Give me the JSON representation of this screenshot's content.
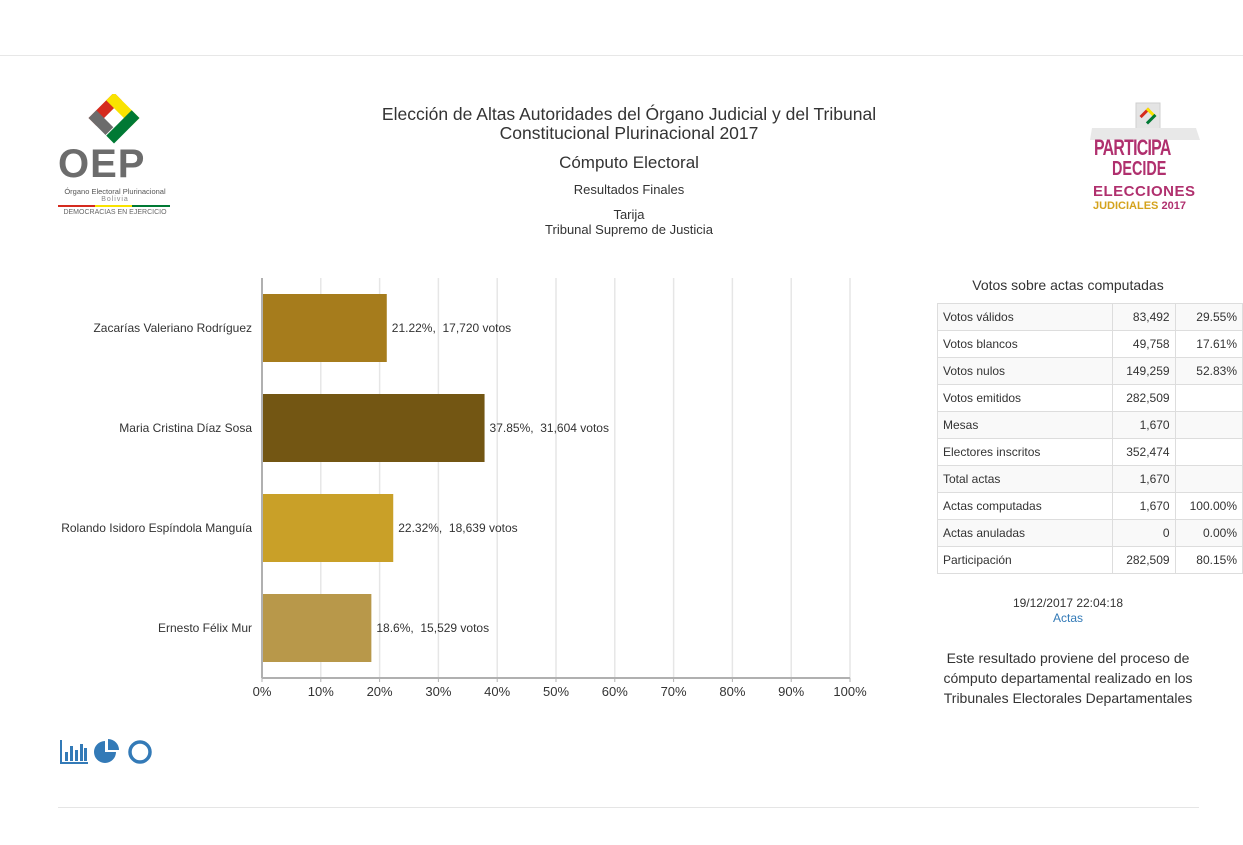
{
  "header": {
    "title": "Elección de Altas Autoridades del Órgano Judicial y del Tribunal Constitucional Plurinacional 2017",
    "subtitle": "Cómputo Electoral",
    "results_type": "Resultados Finales",
    "department": "Tarija",
    "tribunal": "Tribunal Supremo de Justicia"
  },
  "logos": {
    "oep": {
      "text": "OEP",
      "subtext": "Órgano Electoral Plurinacional",
      "country": "Bolivia",
      "motto": "DEMOCRACIAS EN EJERCICIO"
    },
    "participa": {
      "word1": "PARTICIPA",
      "word2": "DECIDE",
      "elecciones": "ELECCIONES",
      "judiciales": "JUDICIALES",
      "year": "2017"
    }
  },
  "chart_data": {
    "type": "bar",
    "orientation": "horizontal",
    "categories": [
      "Zacarías Valeriano Rodríguez",
      "Maria Cristina Díaz Sosa",
      "Rolando Isidoro Espíndola Manguía",
      "Ernesto Félix Mur"
    ],
    "values": [
      21.22,
      37.85,
      22.32,
      18.6
    ],
    "data_labels": [
      "21.22%,  17,720 votos",
      "37.85%,  31,604 votos",
      "22.32%,  18,639 votos",
      "18.6%,  15,529 votos"
    ],
    "colors": [
      "#a67c1c",
      "#735613",
      "#c9a028",
      "#b8984a"
    ],
    "xlim": [
      0,
      100
    ],
    "x_ticks": [
      "0%",
      "10%",
      "20%",
      "30%",
      "40%",
      "50%",
      "60%",
      "70%",
      "80%",
      "90%",
      "100%"
    ],
    "grid": true
  },
  "stats": {
    "title": "Votos sobre actas computadas",
    "rows": [
      {
        "label": "Votos válidos",
        "value": "83,492",
        "pct": "29.55%"
      },
      {
        "label": "Votos blancos",
        "value": "49,758",
        "pct": "17.61%"
      },
      {
        "label": "Votos nulos",
        "value": "149,259",
        "pct": "52.83%"
      },
      {
        "label": "Votos emitidos",
        "value": "282,509",
        "pct": ""
      },
      {
        "label": "Mesas",
        "value": "1,670",
        "pct": ""
      },
      {
        "label": "Electores inscritos",
        "value": "352,474",
        "pct": ""
      },
      {
        "label": "Total actas",
        "value": "1,670",
        "pct": ""
      },
      {
        "label": "Actas computadas",
        "value": "1,670",
        "pct": "100.00%"
      },
      {
        "label": "Actas anuladas",
        "value": "0",
        "pct": "0.00%"
      },
      {
        "label": "Participación",
        "value": "282,509",
        "pct": "80.15%"
      }
    ],
    "timestamp": "19/12/2017 22:04:18",
    "actas_link": "Actas",
    "note": "Este resultado proviene del proceso de cómputo departamental realizado en los Tribunales Electorales Departamentales"
  },
  "chart_type_icons": [
    "bar-chart-icon",
    "pie-chart-icon",
    "donut-chart-icon"
  ],
  "colors": {
    "icon_blue": "#337ab7",
    "link_blue": "#337ab7"
  }
}
